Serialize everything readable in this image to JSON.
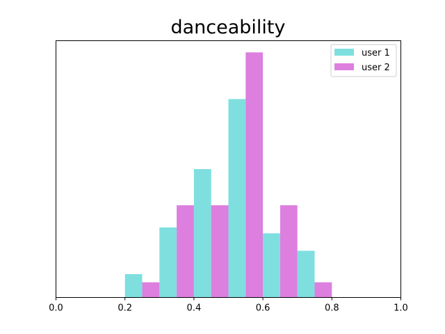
{
  "chart_data": {
    "type": "bar",
    "title": "danceability",
    "xlabel": "",
    "ylabel": "",
    "xlim": [
      0,
      1
    ],
    "x_ticks": [
      "0.0",
      "0.2",
      "0.4",
      "0.6",
      "0.8",
      "1.0"
    ],
    "y_ticks_shown": false,
    "grid": false,
    "legend_position": "top-right",
    "bin_edges": [
      0.2,
      0.3,
      0.4,
      0.5,
      0.6,
      0.7,
      0.8
    ],
    "series": [
      {
        "name": "user 1",
        "color": "#7fdfdf",
        "values": [
          2,
          6,
          11,
          17,
          5.5,
          4
        ]
      },
      {
        "name": "user 2",
        "color": "#dd7fdf",
        "values": [
          1.3,
          7.9,
          7.9,
          21,
          7.9,
          1.3
        ]
      }
    ],
    "ylim": [
      0,
      22
    ]
  }
}
